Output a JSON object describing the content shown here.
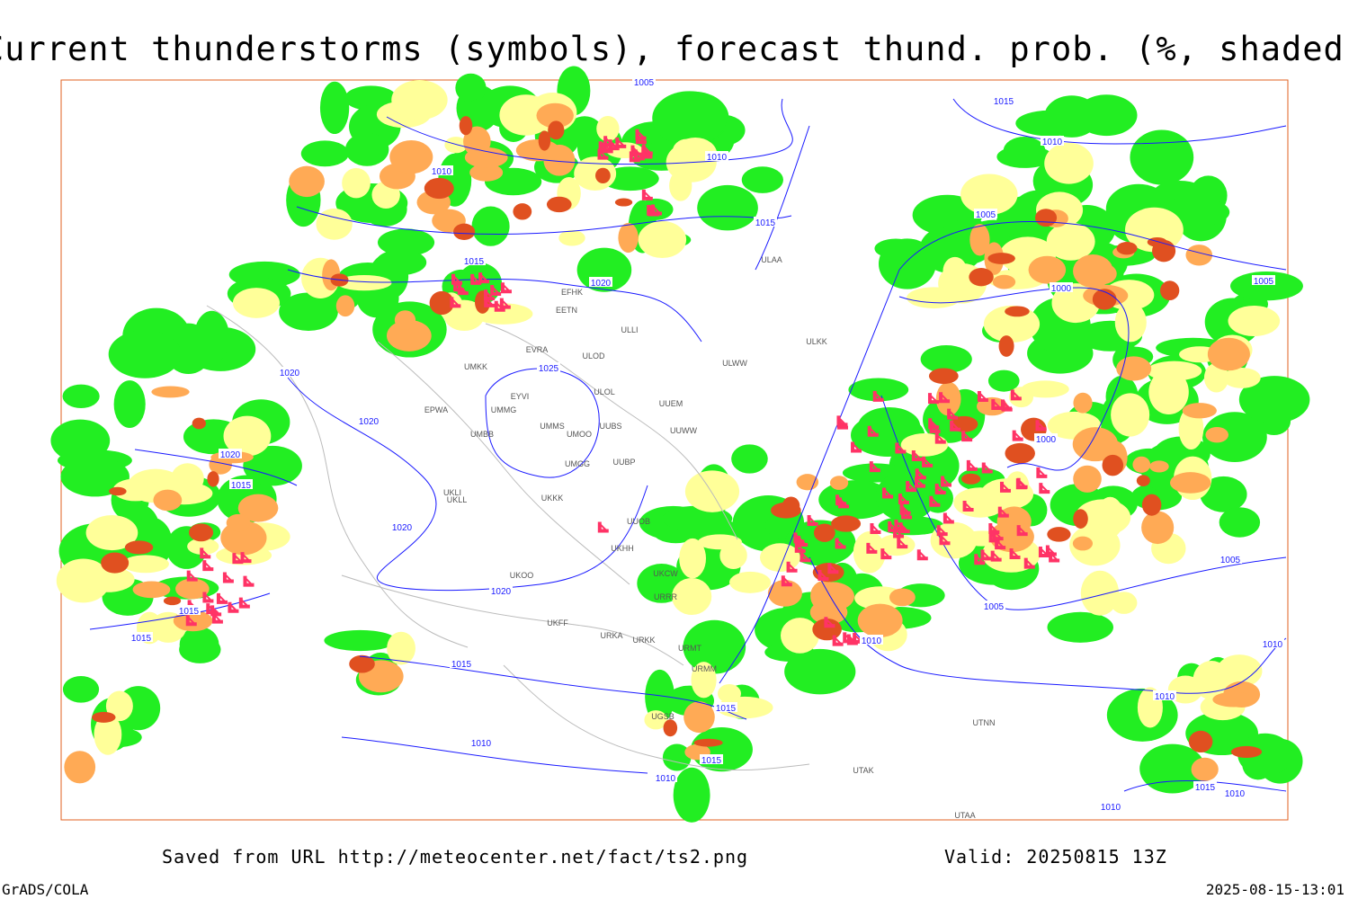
{
  "title": "Current thunderstorms (symbols), forecast thund. prob. (%, shaded)",
  "footer": {
    "source": "Saved from URL http://meteocenter.net/fact/ts2.png",
    "valid": "Valid: 20250815 13Z",
    "software": "GrADS/COLA",
    "timestamp": "2025-08-15-13:01"
  },
  "isobar_labels": [
    "1005",
    "1010",
    "1010",
    "1015",
    "1015",
    "1020",
    "1025",
    "1020",
    "1020",
    "1020",
    "1015",
    "1020",
    "1020",
    "1015",
    "1015",
    "1015",
    "1015",
    "1015",
    "1010",
    "1010",
    "1015",
    "1010",
    "1005",
    "1000",
    "1005",
    "1000",
    "1005",
    "1010",
    "1005",
    "1010",
    "1010",
    "1015",
    "1010",
    "1010"
  ],
  "stations": [
    "ULAA",
    "EFHK",
    "EETN",
    "ULLI",
    "EVRA",
    "ULOD",
    "UMKK",
    "ULOL",
    "EYVI",
    "UUEM",
    "EPWA",
    "UMMG",
    "UMMS",
    "UUBS",
    "UMOO",
    "UUWW",
    "UMBB",
    "UMGG",
    "UUBP",
    "ULKK",
    "ULWW",
    "UKKK",
    "UUOB",
    "UKHH",
    "UKOO",
    "UKCW",
    "URRR",
    "UKFF",
    "URKA",
    "URKK",
    "URMT",
    "URMM",
    "UTNN",
    "UTAK",
    "UGSB",
    "UTAA",
    "UKLL",
    "UKLI"
  ]
}
